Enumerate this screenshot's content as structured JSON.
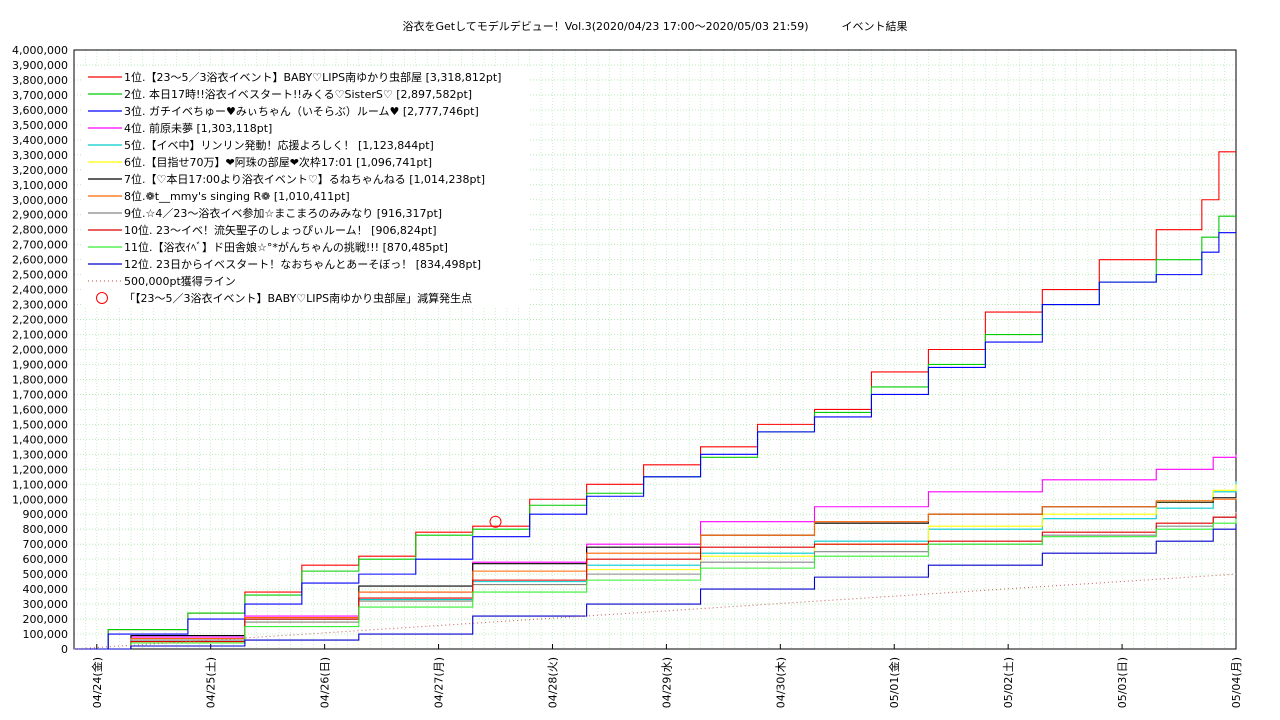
{
  "chart_data": {
    "type": "line",
    "title": "浴衣をGetしてモデルデビュー！Vol.3(2020/04/23 17:00〜2020/05/03 21:59)　　　イベント結果",
    "xlabel": "",
    "ylabel": "",
    "xlim": [
      0,
      10.2
    ],
    "ylim": [
      0,
      4000000
    ],
    "y_step": 100000,
    "grid": true,
    "legend_position": "top-left",
    "x_tick_labels": [
      "04/24(金)",
      "04/25(土)",
      "04/26(日)",
      "04/27(月)",
      "04/28(火)",
      "04/29(水)",
      "04/30(木)",
      "05/01(金)",
      "05/02(土)",
      "05/03(日)",
      "05/04(月)"
    ],
    "x_tick_values": [
      0.2,
      1.2,
      2.2,
      3.2,
      4.2,
      5.2,
      6.2,
      7.2,
      8.2,
      9.2,
      10.2
    ],
    "series": [
      {
        "name": "1位.【23〜5／3浴衣イベント】BABY♡LIPS南ゆかり虫部屋 [3,318,812pt]",
        "color": "#ff0000",
        "x": [
          0,
          0.3,
          1.0,
          1.5,
          2.0,
          2.5,
          3.0,
          3.5,
          4.0,
          4.5,
          5.0,
          5.5,
          6.0,
          6.5,
          7.0,
          7.5,
          8.0,
          8.5,
          9.0,
          9.5,
          9.9,
          10.05,
          10.2
        ],
        "y": [
          0,
          130000,
          240000,
          380000,
          560000,
          620000,
          780000,
          820000,
          1000000,
          1100000,
          1230000,
          1350000,
          1500000,
          1600000,
          1850000,
          2000000,
          2250000,
          2400000,
          2600000,
          2800000,
          3000000,
          3320000,
          3320000
        ]
      },
      {
        "name": "2位. 本日17時!!浴衣イベスタート!!みくる♡SisterS♡ [2,897,582pt]",
        "color": "#00cc00",
        "x": [
          0,
          0.3,
          1.0,
          1.5,
          2.0,
          2.5,
          3.0,
          3.5,
          4.0,
          4.5,
          5.0,
          5.5,
          6.0,
          6.5,
          7.0,
          7.5,
          8.0,
          8.5,
          9.0,
          9.5,
          9.9,
          10.05,
          10.2
        ],
        "y": [
          0,
          130000,
          240000,
          360000,
          520000,
          600000,
          760000,
          800000,
          960000,
          1040000,
          1150000,
          1280000,
          1450000,
          1580000,
          1750000,
          1900000,
          2100000,
          2300000,
          2450000,
          2600000,
          2750000,
          2890000,
          2890000
        ]
      },
      {
        "name": "3位. ガチイベちゅー♥みぃちゃん（いそらぶ）ルーム♥ [2,777,746pt]",
        "color": "#0000ff",
        "x": [
          0,
          0.3,
          1.0,
          1.5,
          2.0,
          2.5,
          3.0,
          3.5,
          4.0,
          4.5,
          5.0,
          5.5,
          6.0,
          6.5,
          7.0,
          7.5,
          8.0,
          8.5,
          9.0,
          9.5,
          9.9,
          10.05,
          10.2
        ],
        "y": [
          0,
          100000,
          200000,
          300000,
          440000,
          500000,
          600000,
          750000,
          900000,
          1020000,
          1150000,
          1300000,
          1450000,
          1550000,
          1700000,
          1880000,
          2050000,
          2300000,
          2450000,
          2500000,
          2650000,
          2780000,
          2780000
        ]
      },
      {
        "name": "4位. 前原未夢 [1,303,118pt]",
        "color": "#ff00ff",
        "x": [
          0,
          0.5,
          1.5,
          2.5,
          3.5,
          4.5,
          5.5,
          6.5,
          7.5,
          8.5,
          9.5,
          10.0,
          10.2
        ],
        "y": [
          0,
          80000,
          220000,
          380000,
          580000,
          700000,
          850000,
          950000,
          1050000,
          1130000,
          1200000,
          1280000,
          1300000
        ]
      },
      {
        "name": "5位.【イベ中】リンリン発動！応援よろしく！ [1,123,844pt]",
        "color": "#00cccc",
        "x": [
          0,
          0.5,
          1.5,
          2.5,
          3.5,
          4.5,
          5.5,
          6.5,
          7.5,
          8.5,
          9.5,
          10.0,
          10.2
        ],
        "y": [
          0,
          60000,
          200000,
          330000,
          450000,
          560000,
          640000,
          720000,
          800000,
          870000,
          940000,
          1050000,
          1120000
        ]
      },
      {
        "name": "6位.【目指せ70万】❤阿珠の部屋❤次枠17:01 [1,096,741pt]",
        "color": "#ffff00",
        "x": [
          0,
          0.5,
          1.5,
          2.5,
          3.5,
          4.5,
          5.5,
          6.5,
          7.5,
          8.5,
          9.5,
          10.0,
          10.2
        ],
        "y": [
          0,
          50000,
          180000,
          320000,
          430000,
          530000,
          620000,
          700000,
          820000,
          900000,
          980000,
          1060000,
          1100000
        ]
      },
      {
        "name": "7位.【♡本日17:00より浴衣イベント♡】るねちゃんねる [1,014,238pt]",
        "color": "#000000",
        "x": [
          0,
          0.5,
          1.5,
          2.5,
          3.5,
          4.5,
          5.5,
          6.5,
          7.5,
          8.5,
          9.5,
          10.0,
          10.2
        ],
        "y": [
          0,
          90000,
          200000,
          420000,
          570000,
          680000,
          760000,
          840000,
          900000,
          950000,
          980000,
          1010000,
          1015000
        ]
      },
      {
        "name": "8位.❁t__mmy's singing R❁ [1,010,411pt]",
        "color": "#ff6600",
        "x": [
          0,
          0.5,
          1.5,
          2.5,
          3.5,
          4.5,
          5.5,
          6.5,
          7.5,
          8.5,
          9.5,
          10.0,
          10.2
        ],
        "y": [
          0,
          70000,
          210000,
          380000,
          520000,
          640000,
          760000,
          850000,
          900000,
          950000,
          990000,
          1000000,
          1010000
        ]
      },
      {
        "name": "9位.☆4／23〜浴衣イベ参加☆まこまろのみみなり [916,317pt]",
        "color": "#888888",
        "x": [
          0,
          0.5,
          1.5,
          2.5,
          3.5,
          4.5,
          5.5,
          6.5,
          7.5,
          8.5,
          9.5,
          10.0,
          10.2
        ],
        "y": [
          0,
          60000,
          180000,
          320000,
          430000,
          500000,
          580000,
          650000,
          700000,
          760000,
          820000,
          880000,
          916000
        ]
      },
      {
        "name": "10位. 23〜イベ！流矢聖子のしょっぴぃルーム！ [906,824pt]",
        "color": "#dd0000",
        "x": [
          0,
          0.5,
          1.5,
          2.5,
          3.5,
          4.5,
          5.5,
          6.5,
          7.5,
          8.5,
          9.5,
          10.0,
          10.2
        ],
        "y": [
          0,
          50000,
          200000,
          340000,
          460000,
          600000,
          680000,
          700000,
          720000,
          780000,
          840000,
          880000,
          906000
        ]
      },
      {
        "name": "11位.【浴衣ｲﾍﾞ】ド田舎娘☆°*がんちゃんの挑戦!!! [870,485pt]",
        "color": "#33ee33",
        "x": [
          0,
          0.5,
          1.5,
          2.5,
          3.5,
          4.5,
          5.5,
          6.5,
          7.5,
          8.5,
          9.5,
          10.0,
          10.2
        ],
        "y": [
          0,
          40000,
          150000,
          280000,
          380000,
          460000,
          540000,
          620000,
          700000,
          750000,
          800000,
          840000,
          870000
        ]
      },
      {
        "name": "12位. 23日からイベスタート！なおちゃんとあーそぼっ！ [834,498pt]",
        "color": "#0000cc",
        "x": [
          0,
          0.5,
          1.5,
          2.5,
          3.5,
          4.5,
          5.5,
          6.5,
          7.5,
          8.5,
          9.5,
          10.0,
          10.2
        ],
        "y": [
          0,
          20000,
          60000,
          100000,
          220000,
          300000,
          400000,
          480000,
          560000,
          640000,
          720000,
          800000,
          834000
        ]
      },
      {
        "name": "500,000pt獲得ライン",
        "color": "#cc6666",
        "dashed": true,
        "x": [
          0,
          10.2
        ],
        "y": [
          0,
          500000
        ]
      }
    ],
    "annotations": [
      {
        "label": "「【23〜5／3浴衣イベント】BABY♡LIPS南ゆかり虫部屋」減算発生点",
        "color": "#ff0000",
        "x": 3.7,
        "y": 850000
      }
    ]
  }
}
